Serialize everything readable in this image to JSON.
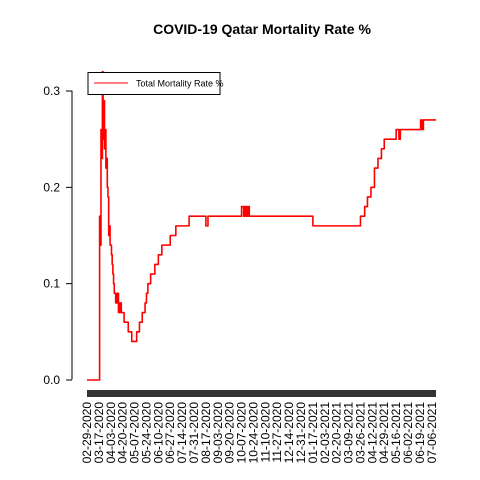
{
  "chart_data": {
    "type": "line",
    "title": "COVID-19 Qatar Mortality Rate %",
    "xlabel": "",
    "ylabel": "",
    "ylim": [
      0,
      0.3
    ],
    "y_ticks": [
      "0.0",
      "0.1",
      "0.2",
      "0.3"
    ],
    "x_tick_labels": [
      "02-29-2020",
      "03-17-2020",
      "04-03-2020",
      "04-20-2020",
      "05-07-2020",
      "05-24-2020",
      "06-10-2020",
      "06-27-2020",
      "07-14-2020",
      "07-31-2020",
      "08-17-2020",
      "09-03-2020",
      "09-20-2020",
      "10-07-2020",
      "10-24-2020",
      "11-10-2020",
      "11-27-2020",
      "12-14-2020",
      "12-31-2020",
      "01-17-2021",
      "02-03-2021",
      "02-20-2021",
      "03-09-2021",
      "03-26-2021",
      "04-12-2021",
      "04-29-2021",
      "05-16-2021",
      "06-02-2021",
      "06-19-2021",
      "07-06-2021"
    ],
    "legend": {
      "position": "top-left",
      "entries": [
        "Total Mortality Rate %"
      ]
    },
    "series": [
      {
        "name": "Total Mortality Rate %",
        "color": "#ff0000",
        "x": [
          "02-29-2020",
          "03-17-2020",
          "03-18-2020",
          "03-19-2020",
          "03-20-2020",
          "03-21-2020",
          "03-22-2020",
          "03-23-2020",
          "03-24-2020",
          "03-25-2020",
          "03-26-2020",
          "03-27-2020",
          "03-28-2020",
          "03-29-2020",
          "03-30-2020",
          "03-31-2020",
          "04-01-2020",
          "04-02-2020",
          "04-03-2020",
          "04-04-2020",
          "04-05-2020",
          "04-06-2020",
          "04-07-2020",
          "04-08-2020",
          "04-10-2020",
          "04-12-2020",
          "04-14-2020",
          "04-16-2020",
          "04-18-2020",
          "04-20-2020",
          "04-22-2020",
          "04-24-2020",
          "04-26-2020",
          "04-28-2020",
          "04-30-2020",
          "05-03-2020",
          "05-06-2020",
          "05-10-2020",
          "05-14-2020",
          "05-18-2020",
          "05-22-2020",
          "05-24-2020",
          "05-26-2020",
          "05-30-2020",
          "06-05-2020",
          "06-10-2020",
          "06-15-2020",
          "06-20-2020",
          "06-27-2020",
          "07-05-2020",
          "07-14-2020",
          "07-24-2020",
          "08-05-2020",
          "08-17-2020",
          "08-20-2020",
          "08-22-2020",
          "09-03-2020",
          "10-07-2020",
          "10-10-2020",
          "10-12-2020",
          "10-14-2020",
          "10-16-2020",
          "10-18-2020",
          "10-20-2020",
          "11-10-2020",
          "12-14-2020",
          "01-17-2021",
          "01-20-2021",
          "02-20-2021",
          "03-20-2021",
          "03-26-2021",
          "04-01-2021",
          "04-05-2021",
          "04-10-2021",
          "04-15-2021",
          "04-20-2021",
          "04-25-2021",
          "04-29-2021",
          "05-05-2021",
          "05-10-2021",
          "05-16-2021",
          "05-20-2021",
          "05-22-2021",
          "05-24-2021",
          "06-02-2021",
          "06-15-2021",
          "06-20-2021",
          "06-22-2021",
          "06-24-2021",
          "07-06-2021",
          "07-12-2021"
        ],
        "y": [
          0,
          0,
          0.17,
          0.14,
          0.26,
          0.23,
          0.32,
          0.25,
          0.29,
          0.24,
          0.26,
          0.22,
          0.23,
          0.2,
          0.19,
          0.15,
          0.16,
          0.14,
          0.14,
          0.13,
          0.12,
          0.11,
          0.1,
          0.09,
          0.08,
          0.09,
          0.07,
          0.08,
          0.07,
          0.07,
          0.06,
          0.06,
          0.06,
          0.05,
          0.05,
          0.04,
          0.04,
          0.05,
          0.06,
          0.07,
          0.08,
          0.09,
          0.1,
          0.11,
          0.12,
          0.13,
          0.14,
          0.14,
          0.15,
          0.16,
          0.16,
          0.17,
          0.17,
          0.16,
          0.17,
          0.17,
          0.17,
          0.18,
          0.17,
          0.18,
          0.17,
          0.18,
          0.17,
          0.17,
          0.17,
          0.17,
          0.16,
          0.16,
          0.16,
          0.16,
          0.17,
          0.18,
          0.19,
          0.2,
          0.22,
          0.23,
          0.24,
          0.25,
          0.25,
          0.25,
          0.26,
          0.25,
          0.26,
          0.26,
          0.26,
          0.26,
          0.27,
          0.26,
          0.27,
          0.27,
          0.27
        ]
      }
    ]
  }
}
